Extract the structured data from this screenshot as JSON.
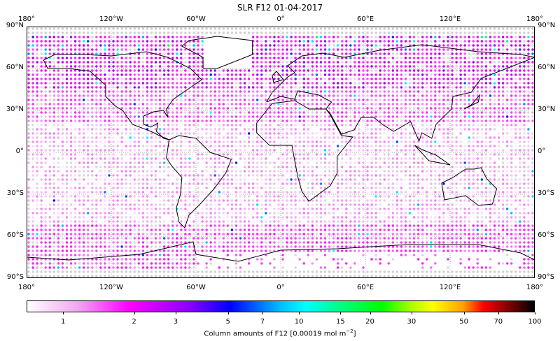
{
  "title": "SLR F12 01-04-2017",
  "chart_data": {
    "type": "scatter",
    "title": "SLR F12 01-04-2017",
    "projection": "equirectangular",
    "x_ticks": [
      "180°",
      "120°W",
      "60°W",
      "0°",
      "60°E",
      "120°E",
      "180°"
    ],
    "x_tick_values": [
      -180,
      -120,
      -60,
      0,
      60,
      120,
      180
    ],
    "y_ticks": [
      "90°N",
      "60°N",
      "30°N",
      "0°",
      "30°S",
      "60°S",
      "90°S"
    ],
    "y_tick_values": [
      90,
      60,
      30,
      0,
      -30,
      -60,
      -90
    ],
    "xlim": [
      -180,
      180
    ],
    "ylim": [
      -90,
      90
    ],
    "grid": true,
    "colorbar": {
      "label": "Column amounts of F12 [0.00019 mol m",
      "label_exp": "−2",
      "label_end": "]",
      "scale": "log",
      "range": [
        0.7,
        100
      ],
      "ticks": [
        "1",
        "2",
        "3",
        "5",
        "7",
        "10",
        "15",
        "20",
        "30",
        "50",
        "70",
        "100"
      ],
      "tick_values": [
        1,
        2,
        3,
        5,
        7,
        10,
        15,
        20,
        30,
        50,
        70,
        100
      ]
    },
    "field_description_values": {
      "typical_tropics": 0.9,
      "typical_northern_midlat": 1.8,
      "max_shown": 100
    }
  }
}
